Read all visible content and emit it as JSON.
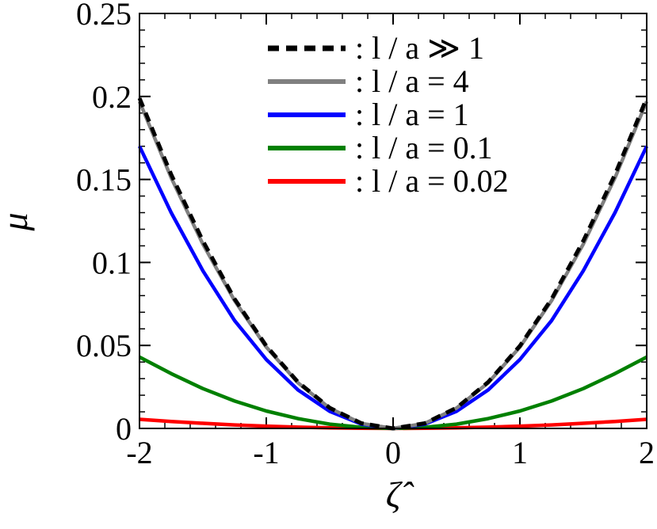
{
  "chart_data": {
    "type": "line",
    "xlabel": "ζ̂",
    "ylabel": "μ",
    "xlim": [
      -2,
      2
    ],
    "ylim": [
      0,
      0.25
    ],
    "xticks": [
      -2,
      -1,
      0,
      1,
      2
    ],
    "xtick_labels": [
      "-2",
      "-1",
      "0",
      "1",
      "2"
    ],
    "yticks": [
      0,
      0.05,
      0.1,
      0.15,
      0.2,
      0.25
    ],
    "ytick_labels": [
      "0",
      "0.05",
      "0.1",
      "0.15",
      "0.2",
      "0.25"
    ],
    "x_minor_step": 0.2,
    "y_minor_step": 0.01,
    "grid": false,
    "legend_position": "top-right",
    "x": [
      -2,
      -1.75,
      -1.5,
      -1.25,
      -1,
      -0.75,
      -0.5,
      -0.25,
      0,
      0.25,
      0.5,
      0.75,
      1,
      1.25,
      1.5,
      1.75,
      2
    ],
    "series": [
      {
        "name": ": l / a ≫ 1",
        "color": "#000000",
        "dash": "dashed",
        "values": [
          0.199,
          0.153,
          0.113,
          0.078,
          0.0497,
          0.0279,
          0.0124,
          0.0031,
          0,
          0.0031,
          0.0124,
          0.0279,
          0.0497,
          0.078,
          0.113,
          0.153,
          0.199
        ]
      },
      {
        "name": ": l / a = 4",
        "color": "#808080",
        "dash": "solid",
        "values": [
          0.197,
          0.151,
          0.111,
          0.077,
          0.049,
          0.0275,
          0.0122,
          0.003,
          0,
          0.003,
          0.0122,
          0.0275,
          0.049,
          0.077,
          0.111,
          0.151,
          0.197
        ]
      },
      {
        "name": ": l / a = 1",
        "color": "#0000ff",
        "dash": "solid",
        "values": [
          0.17,
          0.13,
          0.095,
          0.065,
          0.0415,
          0.0232,
          0.0103,
          0.0026,
          0,
          0.0026,
          0.0103,
          0.0232,
          0.0415,
          0.065,
          0.095,
          0.13,
          0.17
        ]
      },
      {
        "name": ": l / a = 0.1",
        "color": "#008000",
        "dash": "solid",
        "values": [
          0.043,
          0.033,
          0.024,
          0.0165,
          0.0105,
          0.0059,
          0.0026,
          0.00065,
          0,
          0.00065,
          0.0026,
          0.0059,
          0.0105,
          0.0165,
          0.024,
          0.033,
          0.043
        ]
      },
      {
        "name": ": l / a = 0.02",
        "color": "#ff0000",
        "dash": "solid",
        "values": [
          0.0055,
          0.0042,
          0.0031,
          0.0021,
          0.0014,
          0.00077,
          0.00034,
          9e-05,
          0,
          9e-05,
          0.00034,
          0.00077,
          0.0014,
          0.0021,
          0.0031,
          0.0042,
          0.0055
        ]
      }
    ]
  }
}
